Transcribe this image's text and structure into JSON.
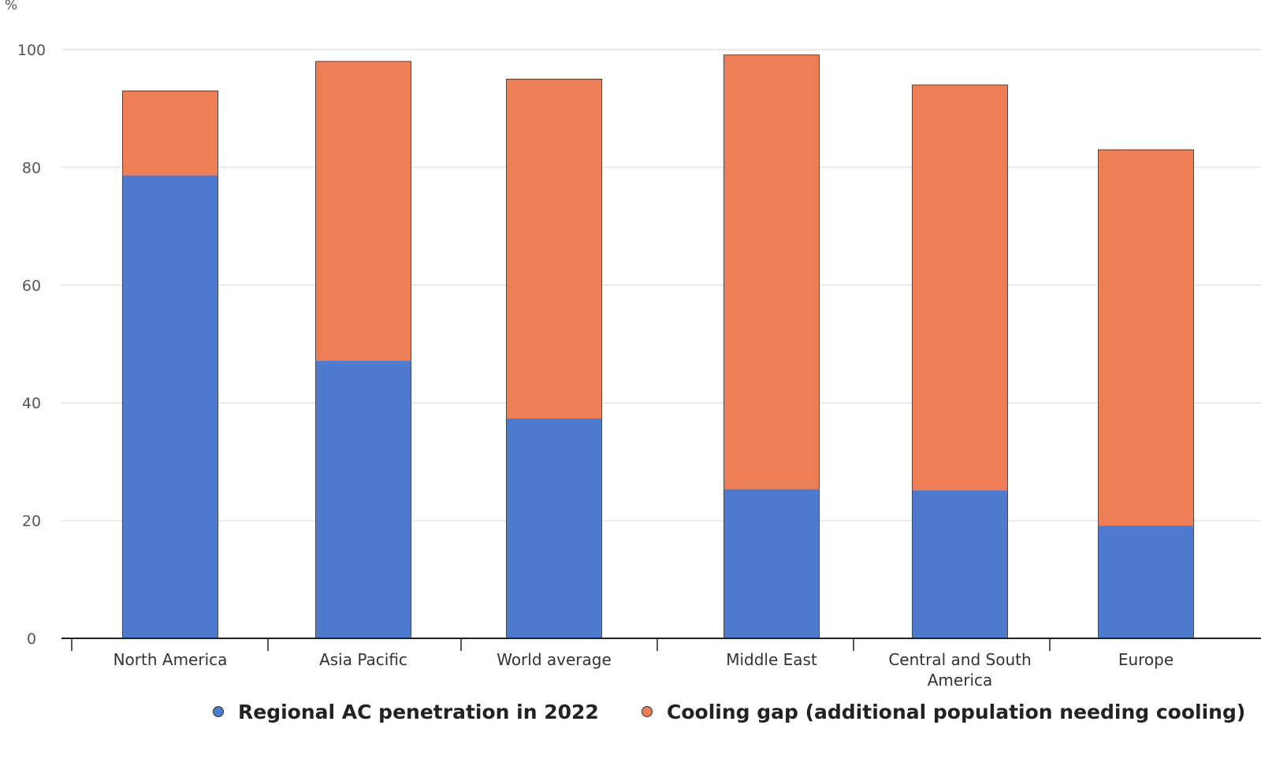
{
  "chart_data": {
    "type": "bar",
    "stacked": true,
    "unit_label": "%",
    "categories": [
      "North America",
      "Asia Pacific",
      "World average",
      "Middle East",
      "Central and South America",
      "Europe"
    ],
    "series": [
      {
        "name": "Regional AC penetration in 2022",
        "color": "#4e7bce",
        "values": [
          78.5,
          47,
          37.2,
          25.2,
          25,
          19
        ]
      },
      {
        "name": "Cooling gap (additional population needing cooling)",
        "color": "#ee7e56",
        "values": [
          14.5,
          51,
          57.8,
          73.9,
          69,
          64
        ]
      }
    ],
    "ylim": [
      0,
      100
    ],
    "yticks": [
      0,
      20,
      40,
      60,
      80,
      100
    ],
    "grid": true,
    "legend_position": "bottom"
  }
}
